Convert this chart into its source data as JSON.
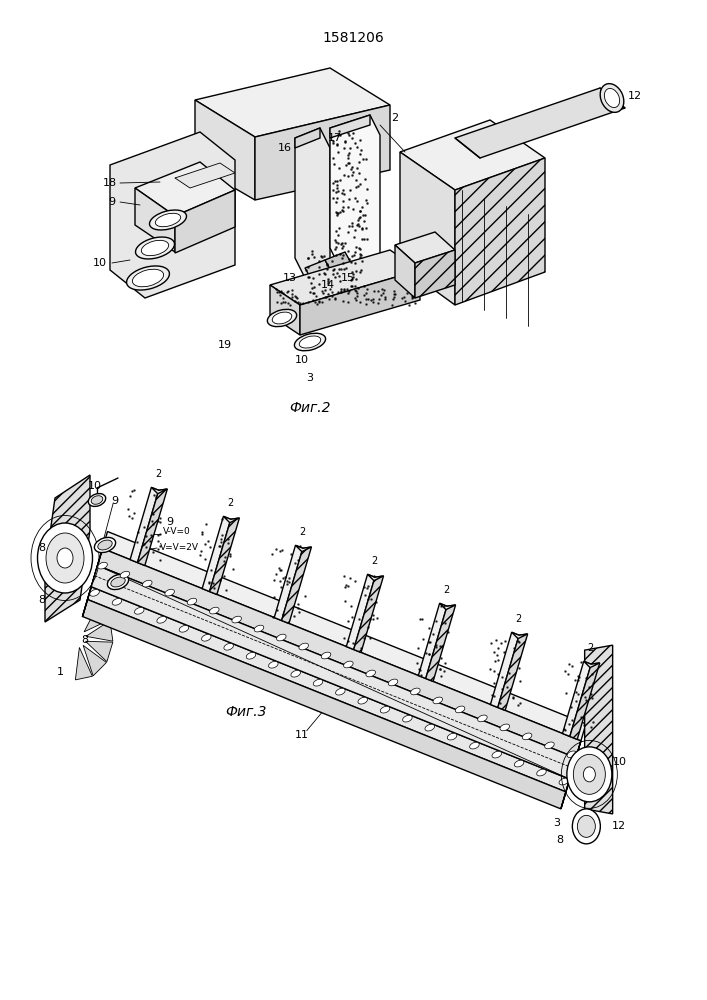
{
  "title": "1581206",
  "fig2_label": "Фиг.2",
  "fig3_label": "Фиг.3",
  "bg_color": "#ffffff",
  "line_color": "#000000",
  "fig_width": 7.07,
  "fig_height": 10.0,
  "dpi": 100,
  "lw_main": 1.0,
  "lw_thin": 0.6
}
